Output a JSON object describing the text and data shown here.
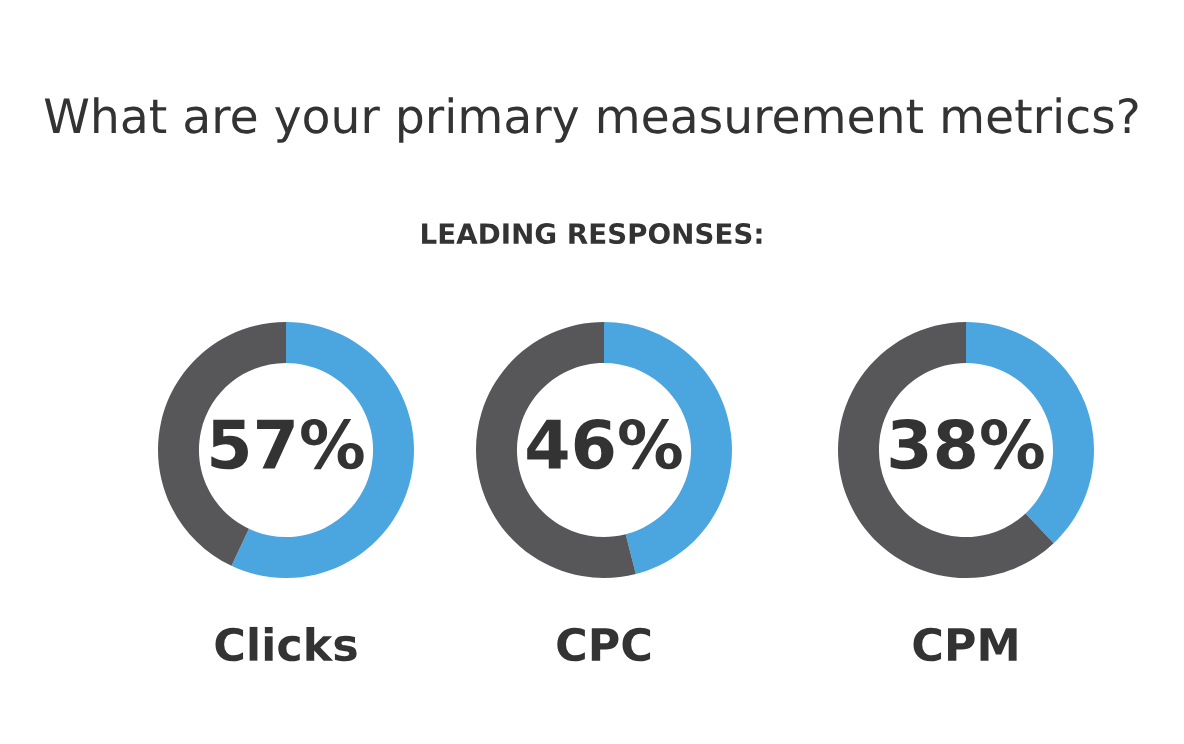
{
  "chart_data": [
    {
      "type": "donut",
      "xlabel": "Clicks",
      "categories": [
        null,
        null
      ],
      "values": [
        57,
        43
      ],
      "colors": [
        "#4ba6e0",
        "#57575a"
      ],
      "value_labels": [
        "57%",
        null
      ]
    },
    {
      "type": "donut",
      "title": "What are your primary measurement metrics?",
      "subtitle": "LEADING RESPONSES:",
      "xlabel": "CPC",
      "categories": [
        null,
        null
      ],
      "values": [
        46,
        54
      ],
      "colors": [
        "#4ba6e0",
        "#57575a"
      ],
      "value_labels": [
        "46%",
        null
      ]
    },
    {
      "type": "donut",
      "xlabel": "CPM",
      "categories": [
        null,
        null
      ],
      "values": [
        38,
        62
      ],
      "colors": [
        "#4ba6e0",
        "#57575a"
      ],
      "value_labels": [
        "38%",
        null
      ]
    }
  ]
}
